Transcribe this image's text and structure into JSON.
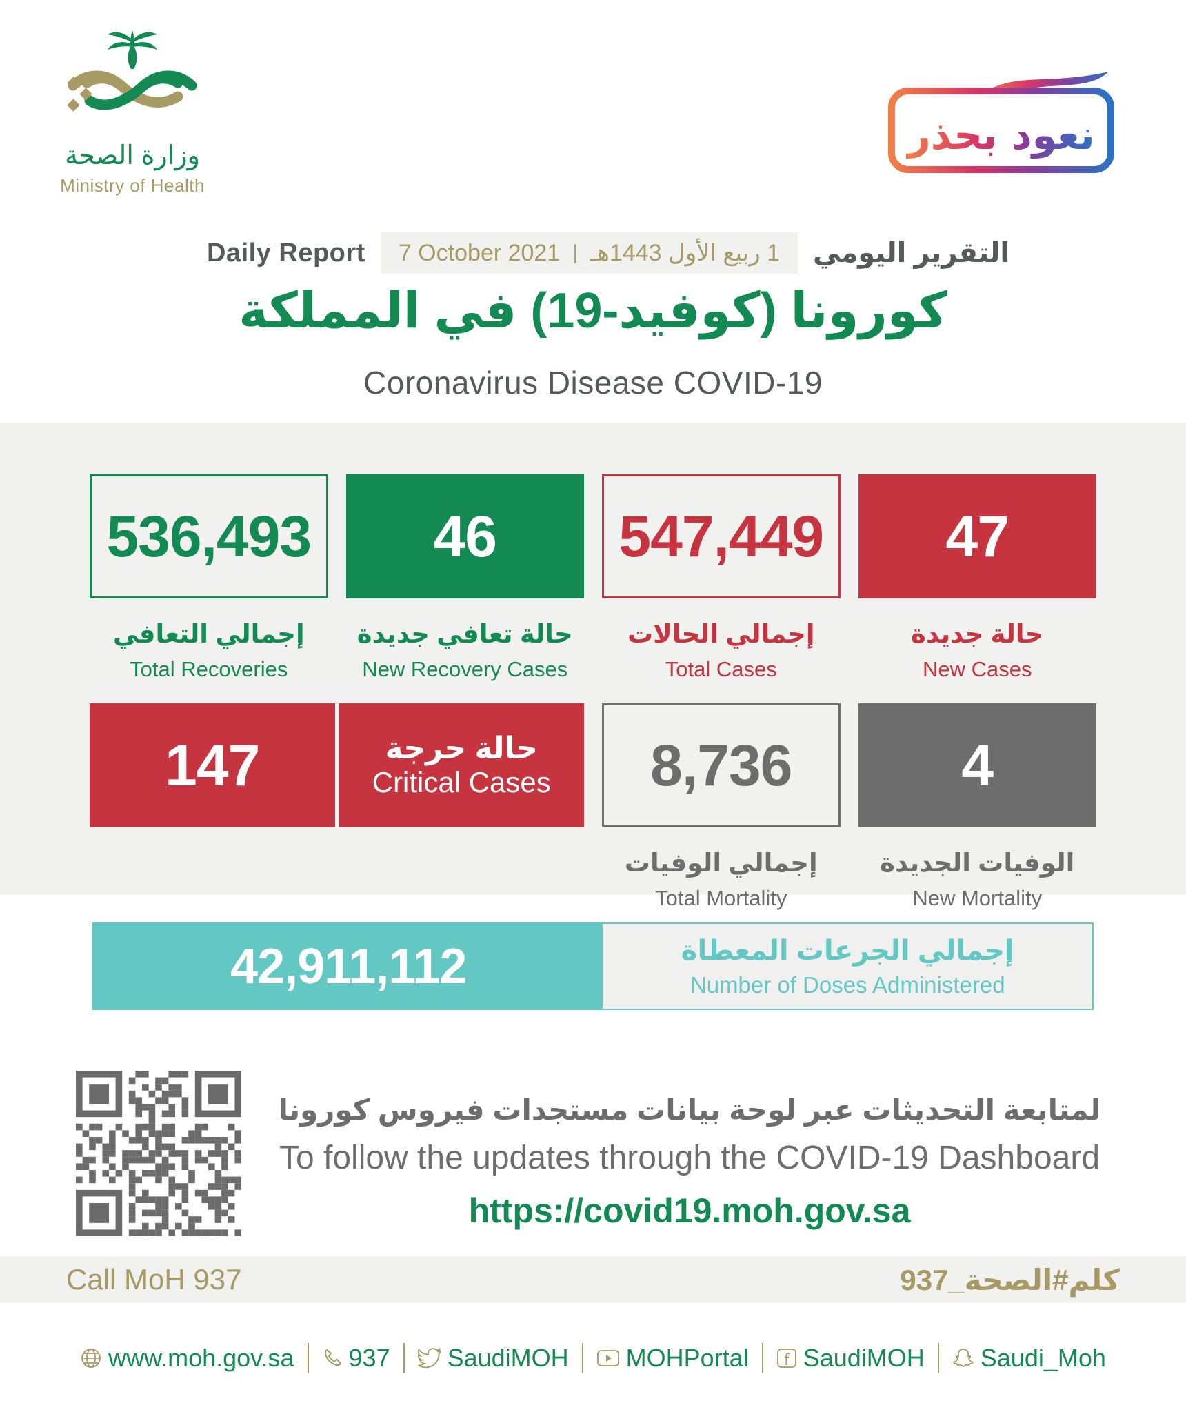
{
  "brand": {
    "ministry_ar": "وزارة الصحة",
    "ministry_en": "Ministry of Health",
    "badge_text": "نعود بحذر"
  },
  "header": {
    "daily_report_en": "Daily Report",
    "date_gregorian": "7 October 2021",
    "date_separator": "|",
    "date_hijri": "1 ربيع الأول 1443هـ",
    "daily_report_ar": "التقرير اليومي",
    "title_ar": "كورونا (كوفيد-19) في المملكة",
    "title_en": "Coronavirus Disease COVID-19"
  },
  "stats": {
    "row1": [
      {
        "value": "536,493",
        "label_ar": "إجمالي التعافي",
        "label_en": "Total Recoveries"
      },
      {
        "value": "46",
        "label_ar": "حالة تعافي جديدة",
        "label_en": "New Recovery Cases"
      },
      {
        "value": "547,449",
        "label_ar": "إجمالي الحالات",
        "label_en": "Total Cases"
      },
      {
        "value": "47",
        "label_ar": "حالة جديدة",
        "label_en": "New Cases"
      }
    ],
    "critical": {
      "value": "147",
      "label_ar": "حالة حرجة",
      "label_en": "Critical Cases"
    },
    "row2": [
      {
        "value": "8,736",
        "label_ar": "إجمالي الوفيات",
        "label_en": "Total Mortality"
      },
      {
        "value": "4",
        "label_ar": "الوفيات الجديدة",
        "label_en": "New Mortality"
      }
    ],
    "doses": {
      "value": "42,911,112",
      "label_ar": "إجمالي الجرعات المعطاة",
      "label_en": "Number of Doses Administered"
    }
  },
  "dashboard": {
    "line_ar": "لمتابعة التحديثات عبر لوحة بيانات مستجدات فيروس كورونا",
    "line_en": "To follow the updates through the COVID-19 Dashboard",
    "url": "https://covid19.moh.gov.sa"
  },
  "callband": {
    "left": "Call MoH 937",
    "right": "كلم#الصحة_937"
  },
  "footer": {
    "items": [
      {
        "icon": "globe-icon",
        "label": "www.moh.gov.sa"
      },
      {
        "icon": "phone-icon",
        "label": "937"
      },
      {
        "icon": "twitter-icon",
        "label": "SaudiMOH"
      },
      {
        "icon": "youtube-icon",
        "label": "MOHPortal"
      },
      {
        "icon": "facebook-icon",
        "label": "SaudiMOH"
      },
      {
        "icon": "snapchat-icon",
        "label": "Saudi_Moh"
      }
    ]
  },
  "colors": {
    "green": "#128a52",
    "gold": "#a79a64",
    "red": "#c5343f",
    "gray": "#6d6d6d",
    "dark_text": "#57585a",
    "teal": "#63c8c3",
    "band_bg": "#f1f1ef",
    "badge_gradient": [
      "#ef7f47",
      "#d93566",
      "#833e9c",
      "#2b72c4"
    ]
  }
}
